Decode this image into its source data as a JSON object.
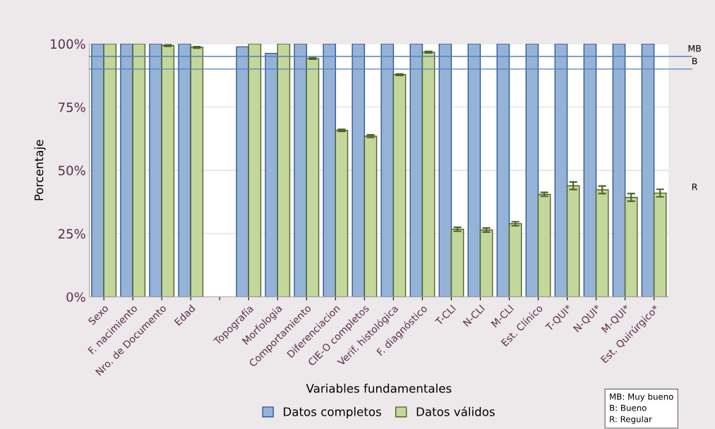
{
  "chart_data": {
    "type": "bar",
    "xlabel": "Variables fundamentales",
    "ylabel": "Porcentaje",
    "categories": [
      "Sexo",
      "F. nacimiento",
      "Nro. de Documento",
      "Edad",
      null,
      "Topografía",
      "Morfologia",
      "Comportamiento",
      "Diferenciacion",
      "CIE-O completos",
      "Verif. histológica",
      "F. diagnóstico",
      "T-CLI",
      "N-CLI",
      "M-CLI",
      "Est. Clínico",
      "T-QUI*",
      "N-QUI*",
      "M-QUI*",
      "Est. Quirúrgico*"
    ],
    "series": [
      {
        "name": "Datos completos",
        "color": "#95b3d7",
        "values": [
          100,
          100,
          100,
          100,
          null,
          98.8,
          96.2,
          100,
          100,
          100,
          100,
          100,
          100,
          100,
          100,
          100,
          100,
          100,
          100,
          100
        ]
      },
      {
        "name": "Datos válidos",
        "color": "#c3d69b",
        "values": [
          100,
          100,
          99.3,
          98.6,
          null,
          100,
          100,
          94.2,
          65.8,
          63.5,
          87.8,
          96.7,
          26.7,
          26.4,
          28.9,
          40.5,
          43.9,
          42.3,
          39.3,
          41.0
        ],
        "errors": [
          null,
          null,
          0.3,
          0.3,
          null,
          null,
          null,
          0.3,
          0.4,
          0.5,
          0.3,
          0.3,
          0.8,
          0.8,
          0.8,
          0.8,
          1.5,
          1.5,
          1.5,
          1.5
        ]
      }
    ],
    "ylim": [
      0,
      100
    ],
    "yticks": [
      {
        "value": 0,
        "label": "0%"
      },
      {
        "value": 25,
        "label": "25%"
      },
      {
        "value": 50,
        "label": "50%"
      },
      {
        "value": 75,
        "label": "75%"
      },
      {
        "value": 100,
        "label": "100%"
      }
    ],
    "grid": "y",
    "legend": "bottom",
    "ref_lines": [
      {
        "axis": "y",
        "value": 95,
        "label": "MB",
        "color": "#4f81bd"
      },
      {
        "axis": "y",
        "value": 90,
        "label": "B",
        "color": "#4f81bd"
      }
    ],
    "annotations": [
      "R",
      "MB: Muy bueno\nB: Bueno\nR: Regular"
    ]
  }
}
